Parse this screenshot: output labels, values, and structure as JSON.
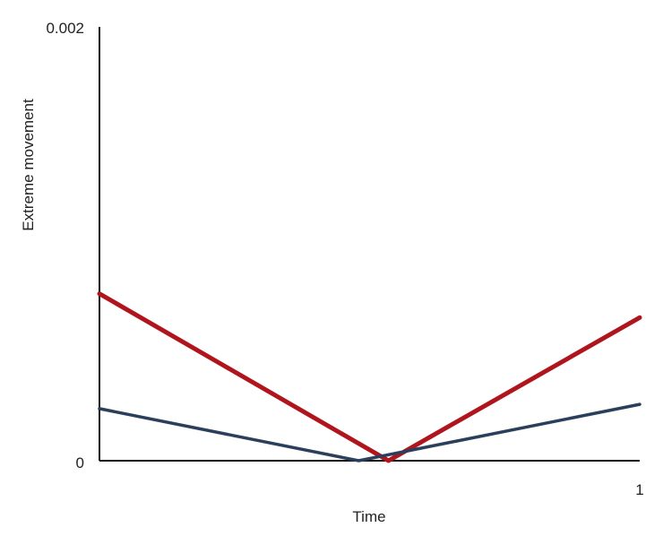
{
  "chart_data": {
    "type": "line",
    "title": "",
    "xlabel": "Time",
    "ylabel": "Extreme movement",
    "xlim": [
      0,
      1
    ],
    "ylim": [
      0,
      0.002
    ],
    "x_tick_labels": [
      "1"
    ],
    "y_tick_labels": [
      "0",
      "0.002"
    ],
    "grid": false,
    "legend": "none",
    "series": [
      {
        "color": "#b0141c",
        "x": [
          0,
          0.535,
          1
        ],
        "y": [
          0.00077,
          0.0,
          0.00066
        ]
      },
      {
        "color": "#2b3f5c",
        "x": [
          0,
          0.48,
          1
        ],
        "y": [
          0.00024,
          0.0,
          0.00026
        ]
      }
    ]
  }
}
